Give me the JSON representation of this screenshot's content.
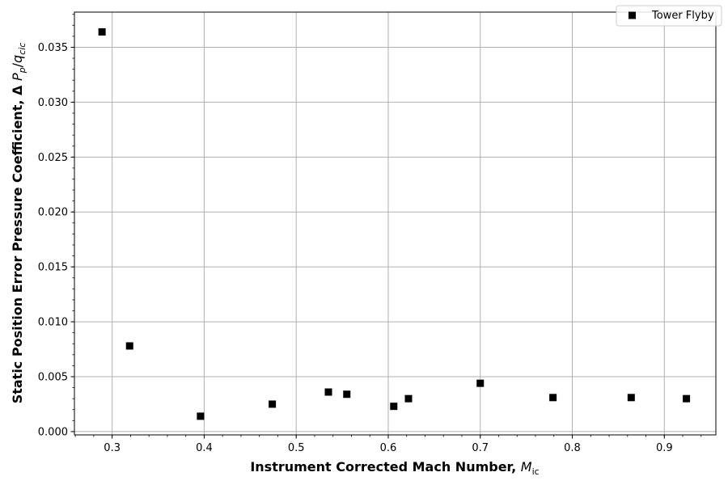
{
  "chart_data": {
    "type": "scatter",
    "title": "",
    "xlabel_main": "Instrument Corrected Mach Number, ",
    "xlabel_sym": "M",
    "xlabel_sub": "ic",
    "ylabel_main": "Static Position Error Pressure Coefficient, Δ ",
    "ylabel_sym1": "P",
    "ylabel_sub1": "p",
    "ylabel_sep": "/",
    "ylabel_sym2": "q",
    "ylabel_sub2": "cic",
    "xlim": [
      0.259,
      0.956
    ],
    "ylim": [
      -0.0003,
      0.0382
    ],
    "x_ticks": [
      0.3,
      0.4,
      0.5,
      0.6,
      0.7,
      0.8,
      0.9
    ],
    "x_tick_labels": [
      "0.3",
      "0.4",
      "0.5",
      "0.6",
      "0.7",
      "0.8",
      "0.9"
    ],
    "x_minor_step": 0.02,
    "y_ticks": [
      0.0,
      0.005,
      0.01,
      0.015,
      0.02,
      0.025,
      0.03,
      0.035
    ],
    "y_tick_labels": [
      "0.000",
      "0.005",
      "0.010",
      "0.015",
      "0.020",
      "0.025",
      "0.030",
      "0.035"
    ],
    "y_minor_step": 0.001,
    "grid": true,
    "legend_position": "top-right",
    "marker_color": "#000000",
    "grid_color": "#b0b0b0",
    "series": [
      {
        "name": "Tower Flyby",
        "marker": "square",
        "points": [
          {
            "x": 0.289,
            "y": 0.0364
          },
          {
            "x": 0.319,
            "y": 0.0078
          },
          {
            "x": 0.396,
            "y": 0.0014
          },
          {
            "x": 0.474,
            "y": 0.0025
          },
          {
            "x": 0.535,
            "y": 0.0036
          },
          {
            "x": 0.555,
            "y": 0.0034
          },
          {
            "x": 0.606,
            "y": 0.0023
          },
          {
            "x": 0.622,
            "y": 0.003
          },
          {
            "x": 0.7,
            "y": 0.0044
          },
          {
            "x": 0.779,
            "y": 0.0031
          },
          {
            "x": 0.864,
            "y": 0.0031
          },
          {
            "x": 0.924,
            "y": 0.003
          }
        ]
      }
    ]
  }
}
